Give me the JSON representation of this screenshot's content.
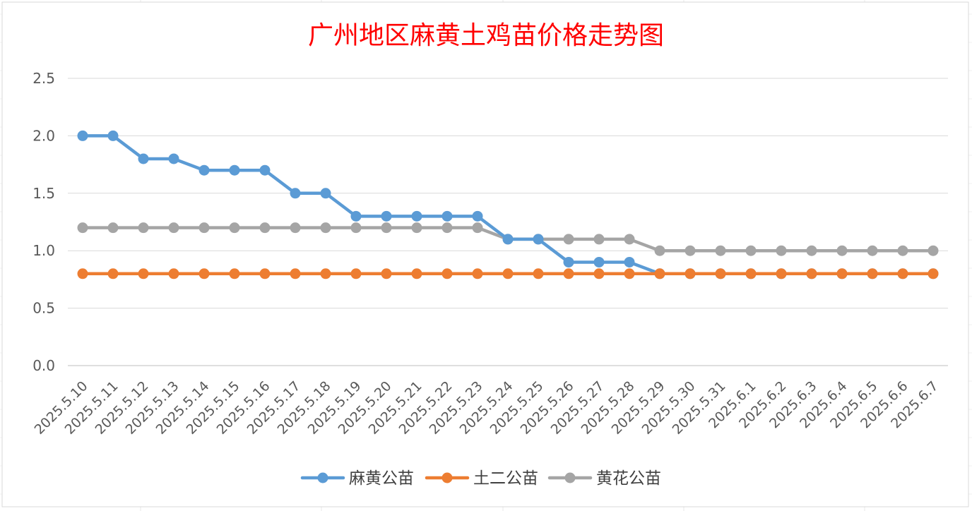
{
  "chart_data": {
    "type": "line",
    "title": "广州地区麻黄土鸡苗价格走势图",
    "xlabel": "",
    "ylabel": "",
    "categories": [
      "2025.5.10",
      "2025.5.11",
      "2025.5.12",
      "2025.5.13",
      "2025.5.14",
      "2025.5.15",
      "2025.5.16",
      "2025.5.17",
      "2025.5.18",
      "2025.5.19",
      "2025.5.20",
      "2025.5.21",
      "2025.5.22",
      "2025.5.23",
      "2025.5.24",
      "2025.5.25",
      "2025.5.26",
      "2025.5.27",
      "2025.5.28",
      "2025.5.29",
      "2025.5.30",
      "2025.5.31",
      "2025.6.1",
      "2025.6.2",
      "2025.6.3",
      "2025.6.4",
      "2025.6.5",
      "2025.6.6",
      "2025.6.7"
    ],
    "ylim": [
      0,
      2.5
    ],
    "yticks": [
      "0.0",
      "0.5",
      "1.0",
      "1.5",
      "2.0",
      "2.5"
    ],
    "grid": true,
    "legend_position": "bottom",
    "series": [
      {
        "name": "麻黄公苗",
        "color": "#5B9BD5",
        "values": [
          2.0,
          2.0,
          1.8,
          1.8,
          1.7,
          1.7,
          1.7,
          1.5,
          1.5,
          1.3,
          1.3,
          1.3,
          1.3,
          1.3,
          1.1,
          1.1,
          0.9,
          0.9,
          0.9,
          0.8,
          0.8,
          0.8,
          0.8,
          0.8,
          0.8,
          0.8,
          0.8,
          0.8,
          0.8
        ]
      },
      {
        "name": "土二公苗",
        "color": "#ED7D31",
        "values": [
          0.8,
          0.8,
          0.8,
          0.8,
          0.8,
          0.8,
          0.8,
          0.8,
          0.8,
          0.8,
          0.8,
          0.8,
          0.8,
          0.8,
          0.8,
          0.8,
          0.8,
          0.8,
          0.8,
          0.8,
          0.8,
          0.8,
          0.8,
          0.8,
          0.8,
          0.8,
          0.8,
          0.8,
          0.8
        ]
      },
      {
        "name": "黄花公苗",
        "color": "#A5A5A5",
        "values": [
          1.2,
          1.2,
          1.2,
          1.2,
          1.2,
          1.2,
          1.2,
          1.2,
          1.2,
          1.2,
          1.2,
          1.2,
          1.2,
          1.2,
          1.1,
          1.1,
          1.1,
          1.1,
          1.1,
          1.0,
          1.0,
          1.0,
          1.0,
          1.0,
          1.0,
          1.0,
          1.0,
          1.0,
          1.0
        ]
      }
    ],
    "colors": {
      "title": "#FF0000",
      "grid": "#D9D9D9",
      "tick_text": "#595959",
      "legend_text": "#404040"
    }
  }
}
